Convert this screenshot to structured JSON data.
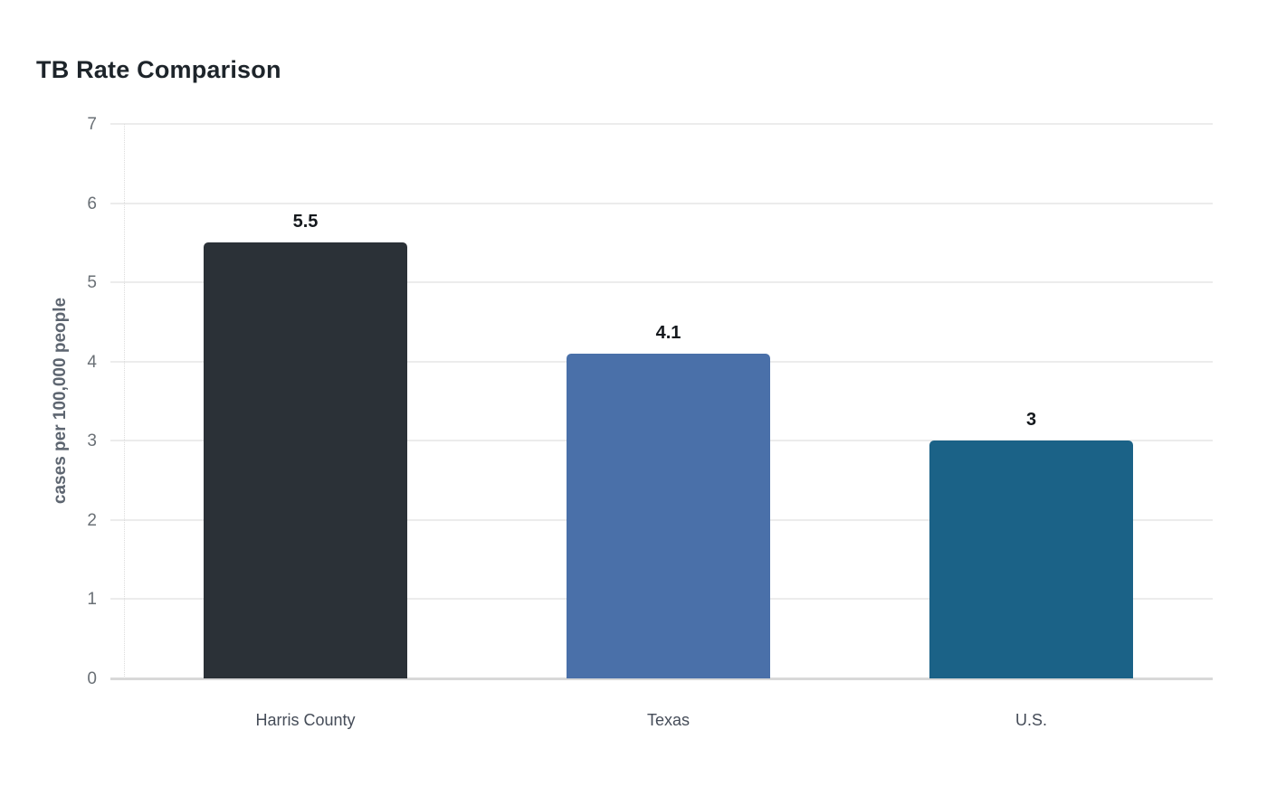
{
  "chart_data": {
    "type": "bar",
    "title": "TB Rate Comparison",
    "ylabel": "cases per 100,000 people",
    "xlabel": "",
    "categories": [
      "Harris County",
      "Texas",
      "U.S."
    ],
    "values": [
      5.5,
      4.1,
      3
    ],
    "value_labels": [
      "5.5",
      "4.1",
      "3"
    ],
    "bar_colors": [
      "#2b3137",
      "#4a70a9",
      "#1b6287"
    ],
    "ylim": [
      0,
      7
    ],
    "yticks": [
      0,
      1,
      2,
      3,
      4,
      5,
      6,
      7
    ],
    "grid": "horizontal-only",
    "legend": "none"
  },
  "colors": {
    "background": "#ffffff",
    "gridline": "#ececec",
    "axis_line": "#d8d8d8",
    "y_axis_dotted": "#dcdcdc",
    "tick_text": "#6a7076",
    "x_tick_text": "#454c58",
    "axis_title_text": "#5d6570",
    "title_text": "#1d242a",
    "value_label_text": "#15191d"
  }
}
